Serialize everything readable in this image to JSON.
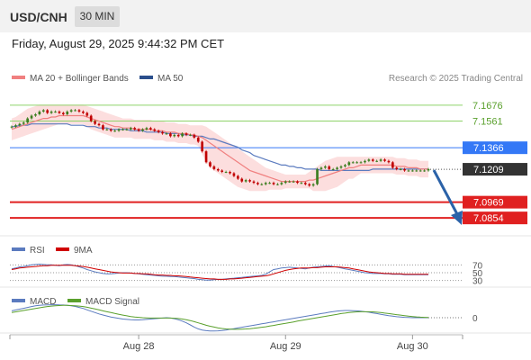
{
  "header": {
    "symbol": "USD/CNH",
    "interval": "30 MIN",
    "datetime": "Friday, August 29, 2025 9:44:32 PM CET"
  },
  "legend": {
    "ma20_label": "MA 20 + Bollinger Bands",
    "ma50_label": "MA 50",
    "credit": "Research © 2025 Trading Central"
  },
  "rsi_panel": {
    "rsi_label": "RSI",
    "ma_label": "9MA"
  },
  "macd_panel": {
    "macd_label": "MACD",
    "signal_label": "MACD Signal"
  },
  "colors": {
    "up_candle": "#3a7d1e",
    "down_candle": "#c00000",
    "ma20": "#f08080",
    "ma50": "#5b7bbf",
    "bollinger_fill": "#fbd3d3",
    "support": "#e02020",
    "resistance": "#8fd36a",
    "pivot": "#3478f6",
    "last_price": "#333333",
    "arrow": "#2b62a8"
  },
  "chart_data": [
    {
      "type": "candlestick",
      "title": "USD/CNH",
      "ylim": [
        7.075,
        7.182
      ],
      "x_tick_labels": [
        "Aug 28",
        "Aug 29",
        "Aug 30"
      ],
      "levels": [
        {
          "kind": "resistance",
          "value": 7.1676,
          "label": "7.1676"
        },
        {
          "kind": "resistance",
          "value": 7.1561,
          "label": "7.1561"
        },
        {
          "kind": "pivot",
          "value": 7.1366,
          "label": "7.1366"
        },
        {
          "kind": "last",
          "value": 7.1209,
          "label": "7.1209"
        },
        {
          "kind": "support",
          "value": 7.0969,
          "label": "7.0969"
        },
        {
          "kind": "support",
          "value": 7.0854,
          "label": "7.0854"
        }
      ],
      "close": [
        7.152,
        7.153,
        7.154,
        7.155,
        7.158,
        7.16,
        7.161,
        7.163,
        7.164,
        7.162,
        7.163,
        7.163,
        7.162,
        7.161,
        7.163,
        7.164,
        7.164,
        7.163,
        7.162,
        7.16,
        7.156,
        7.154,
        7.153,
        7.15,
        7.15,
        7.149,
        7.149,
        7.15,
        7.15,
        7.15,
        7.151,
        7.15,
        7.149,
        7.15,
        7.151,
        7.15,
        7.149,
        7.148,
        7.147,
        7.147,
        7.145,
        7.146,
        7.145,
        7.147,
        7.146,
        7.146,
        7.144,
        7.141,
        7.134,
        7.126,
        7.123,
        7.121,
        7.12,
        7.119,
        7.119,
        7.118,
        7.116,
        7.114,
        7.112,
        7.113,
        7.112,
        7.111,
        7.11,
        7.11,
        7.111,
        7.111,
        7.11,
        7.11,
        7.111,
        7.112,
        7.112,
        7.112,
        7.111,
        7.111,
        7.11,
        7.109,
        7.11,
        7.121,
        7.122,
        7.123,
        7.121,
        7.121,
        7.122,
        7.123,
        7.124,
        7.126,
        7.126,
        7.126,
        7.126,
        7.127,
        7.128,
        7.127,
        7.127,
        7.128,
        7.127,
        7.126,
        7.122,
        7.121,
        7.121,
        7.12,
        7.12,
        7.12,
        7.12,
        7.12,
        7.12,
        7.121
      ],
      "ma20": [
        7.15,
        7.151,
        7.152,
        7.153,
        7.154,
        7.155,
        7.156,
        7.157,
        7.158,
        7.158,
        7.159,
        7.159,
        7.16,
        7.16,
        7.16,
        7.16,
        7.16,
        7.16,
        7.16,
        7.159,
        7.158,
        7.157,
        7.156,
        7.155,
        7.154,
        7.153,
        7.152,
        7.152,
        7.151,
        7.151,
        7.151,
        7.15,
        7.15,
        7.15,
        7.15,
        7.15,
        7.149,
        7.149,
        7.149,
        7.148,
        7.148,
        7.148,
        7.147,
        7.147,
        7.147,
        7.146,
        7.146,
        7.145,
        7.144,
        7.142,
        7.14,
        7.138,
        7.136,
        7.134,
        7.132,
        7.13,
        7.128,
        7.126,
        7.124,
        7.122,
        7.12,
        7.119,
        7.118,
        7.117,
        7.116,
        7.115,
        7.114,
        7.113,
        7.112,
        7.112,
        7.112,
        7.112,
        7.112,
        7.112,
        7.112,
        7.113,
        7.113,
        7.114,
        7.115,
        7.116,
        7.117,
        7.118,
        7.119,
        7.12,
        7.121,
        7.122,
        7.122,
        7.123,
        7.124,
        7.124,
        7.124,
        7.124,
        7.124,
        7.124,
        7.124,
        7.124,
        7.124,
        7.123,
        7.123,
        7.123,
        7.122,
        7.122,
        7.122,
        7.121,
        7.121,
        7.121
      ],
      "ma50": [
        7.152,
        7.152,
        7.153,
        7.153,
        7.153,
        7.154,
        7.154,
        7.154,
        7.154,
        7.154,
        7.154,
        7.154,
        7.154,
        7.154,
        7.154,
        7.153,
        7.153,
        7.153,
        7.153,
        7.152,
        7.152,
        7.152,
        7.151,
        7.151,
        7.151,
        7.15,
        7.15,
        7.15,
        7.15,
        7.15,
        7.149,
        7.149,
        7.149,
        7.149,
        7.148,
        7.148,
        7.148,
        7.148,
        7.148,
        7.147,
        7.147,
        7.147,
        7.147,
        7.146,
        7.146,
        7.146,
        7.145,
        7.145,
        7.145,
        7.144,
        7.143,
        7.143,
        7.142,
        7.141,
        7.14,
        7.139,
        7.138,
        7.137,
        7.135,
        7.134,
        7.133,
        7.131,
        7.13,
        7.129,
        7.128,
        7.127,
        7.126,
        7.125,
        7.124,
        7.124,
        7.123,
        7.123,
        7.122,
        7.122,
        7.121,
        7.121,
        7.121,
        7.121,
        7.12,
        7.12,
        7.12,
        7.12,
        7.12,
        7.12,
        7.12,
        7.12,
        7.12,
        7.12,
        7.12,
        7.12,
        7.12,
        7.121,
        7.121,
        7.121,
        7.121,
        7.121,
        7.121,
        7.121,
        7.121,
        7.121,
        7.121,
        7.121,
        7.121,
        7.121,
        7.121,
        7.121
      ],
      "bollinger_upper": [
        7.158,
        7.159,
        7.161,
        7.163,
        7.165,
        7.166,
        7.167,
        7.168,
        7.168,
        7.168,
        7.168,
        7.168,
        7.168,
        7.168,
        7.168,
        7.168,
        7.168,
        7.168,
        7.168,
        7.167,
        7.166,
        7.165,
        7.164,
        7.163,
        7.162,
        7.161,
        7.16,
        7.159,
        7.158,
        7.158,
        7.158,
        7.157,
        7.157,
        7.157,
        7.157,
        7.157,
        7.156,
        7.156,
        7.156,
        7.155,
        7.155,
        7.155,
        7.154,
        7.154,
        7.154,
        7.153,
        7.153,
        7.153,
        7.153,
        7.152,
        7.15,
        7.148,
        7.146,
        7.144,
        7.142,
        7.14,
        7.138,
        7.136,
        7.134,
        7.132,
        7.13,
        7.128,
        7.126,
        7.124,
        7.122,
        7.121,
        7.12,
        7.119,
        7.118,
        7.117,
        7.117,
        7.117,
        7.117,
        7.117,
        7.117,
        7.119,
        7.121,
        7.123,
        7.125,
        7.127,
        7.128,
        7.129,
        7.13,
        7.13,
        7.13,
        7.13,
        7.13,
        7.13,
        7.13,
        7.13,
        7.13,
        7.13,
        7.13,
        7.13,
        7.13,
        7.13,
        7.13,
        7.129,
        7.129,
        7.129,
        7.128,
        7.128,
        7.128,
        7.127,
        7.127,
        7.127
      ],
      "bollinger_lower": [
        7.142,
        7.143,
        7.144,
        7.145,
        7.146,
        7.147,
        7.148,
        7.149,
        7.15,
        7.151,
        7.152,
        7.153,
        7.154,
        7.154,
        7.154,
        7.154,
        7.154,
        7.154,
        7.154,
        7.152,
        7.15,
        7.149,
        7.148,
        7.147,
        7.146,
        7.145,
        7.144,
        7.144,
        7.144,
        7.144,
        7.144,
        7.143,
        7.143,
        7.143,
        7.143,
        7.143,
        7.142,
        7.142,
        7.142,
        7.141,
        7.141,
        7.141,
        7.14,
        7.14,
        7.14,
        7.139,
        7.139,
        7.138,
        7.132,
        7.126,
        7.122,
        7.12,
        7.118,
        7.116,
        7.114,
        7.112,
        7.11,
        7.108,
        7.107,
        7.106,
        7.105,
        7.105,
        7.105,
        7.105,
        7.105,
        7.106,
        7.106,
        7.106,
        7.106,
        7.107,
        7.107,
        7.107,
        7.107,
        7.107,
        7.107,
        7.107,
        7.105,
        7.105,
        7.105,
        7.105,
        7.106,
        7.107,
        7.108,
        7.11,
        7.112,
        7.114,
        7.114,
        7.116,
        7.118,
        7.118,
        7.118,
        7.118,
        7.118,
        7.118,
        7.118,
        7.118,
        7.118,
        7.117,
        7.117,
        7.117,
        7.116,
        7.116,
        7.116,
        7.115,
        7.115,
        7.115
      ],
      "rsi": {
        "levels": [
          70,
          50,
          30
        ],
        "ylim": [
          20,
          80
        ],
        "values": [
          60,
          62,
          65,
          66,
          68,
          70,
          71,
          72,
          71,
          70,
          70,
          69,
          68,
          70,
          71,
          70,
          68,
          65,
          62,
          58,
          55,
          52,
          50,
          48,
          47,
          47,
          48,
          49,
          50,
          50,
          49,
          48,
          47,
          46,
          45,
          44,
          43,
          42,
          41,
          41,
          40,
          40,
          39,
          38,
          37,
          36,
          35,
          33,
          32,
          31,
          31,
          32,
          33,
          33,
          34,
          35,
          36,
          37,
          38,
          39,
          40,
          41,
          42,
          43,
          46,
          52,
          58,
          60,
          62,
          63,
          64,
          63,
          62,
          61,
          60,
          62,
          64,
          65,
          66,
          67,
          68,
          66,
          64,
          62,
          60,
          58,
          56,
          54,
          52,
          50,
          49,
          48,
          48,
          48,
          47,
          47,
          46,
          46,
          46,
          45,
          45,
          45,
          45,
          45,
          45,
          45
        ],
        "ma": [
          58,
          60,
          62,
          63,
          64,
          65,
          66,
          67,
          68,
          68,
          69,
          69,
          69,
          69,
          69,
          69,
          68,
          67,
          66,
          64,
          62,
          60,
          58,
          56,
          54,
          52,
          51,
          50,
          49,
          49,
          49,
          48,
          48,
          47,
          47,
          46,
          45,
          44,
          44,
          43,
          43,
          42,
          42,
          41,
          40,
          39,
          38,
          37,
          36,
          35,
          34,
          34,
          33,
          33,
          33,
          34,
          34,
          35,
          36,
          37,
          38,
          39,
          40,
          41,
          42,
          44,
          47,
          50,
          53,
          56,
          58,
          60,
          61,
          62,
          62,
          62,
          63,
          63,
          64,
          65,
          65,
          65,
          65,
          64,
          63,
          62,
          60,
          58,
          56,
          54,
          52,
          51,
          50,
          49,
          48,
          48,
          47,
          47,
          47,
          46,
          46,
          46,
          46,
          46,
          46,
          46
        ]
      },
      "macd": {
        "zero_label": "0",
        "macd": [
          0.004,
          0.0045,
          0.005,
          0.0055,
          0.006,
          0.0065,
          0.007,
          0.0072,
          0.0074,
          0.0075,
          0.0076,
          0.0076,
          0.0075,
          0.0074,
          0.0072,
          0.007,
          0.0066,
          0.006,
          0.0054,
          0.0046,
          0.0038,
          0.003,
          0.0022,
          0.0016,
          0.001,
          0.0004,
          0.0,
          -0.0004,
          -0.0008,
          -0.001,
          -0.0012,
          -0.0013,
          -0.0013,
          -0.0012,
          -0.001,
          -0.0008,
          -0.0006,
          -0.0004,
          -0.0002,
          0.0,
          -0.0002,
          -0.0006,
          -0.0012,
          -0.002,
          -0.003,
          -0.0042,
          -0.0055,
          -0.0065,
          -0.0072,
          -0.0076,
          -0.0078,
          -0.0078,
          -0.0077,
          -0.0075,
          -0.0072,
          -0.0068,
          -0.0064,
          -0.006,
          -0.0056,
          -0.0052,
          -0.0048,
          -0.0044,
          -0.004,
          -0.0036,
          -0.0032,
          -0.0028,
          -0.0024,
          -0.002,
          -0.0016,
          -0.0012,
          -0.0008,
          -0.0004,
          0.0,
          0.0004,
          0.0008,
          0.0012,
          0.0016,
          0.002,
          0.0024,
          0.0028,
          0.0032,
          0.0036,
          0.0039,
          0.0041,
          0.0042,
          0.0042,
          0.0041,
          0.004,
          0.0038,
          0.0035,
          0.0032,
          0.0028,
          0.0024,
          0.002,
          0.0016,
          0.0012,
          0.0009,
          0.0006,
          0.0004,
          0.0002,
          0.0001,
          0.0,
          0.0,
          0.0,
          0.0,
          0.0
        ],
        "signal": [
          0.003,
          0.0034,
          0.0038,
          0.0042,
          0.0046,
          0.005,
          0.0054,
          0.0058,
          0.0062,
          0.0065,
          0.0068,
          0.007,
          0.0071,
          0.0072,
          0.0072,
          0.0071,
          0.007,
          0.0068,
          0.0065,
          0.0061,
          0.0056,
          0.0051,
          0.0046,
          0.004,
          0.0035,
          0.003,
          0.0025,
          0.002,
          0.0015,
          0.0011,
          0.0007,
          0.0004,
          0.0002,
          0.0,
          -0.0001,
          -0.0002,
          -0.0002,
          -0.0002,
          -0.0002,
          -0.0002,
          -0.0002,
          -0.0003,
          -0.0005,
          -0.0008,
          -0.0012,
          -0.0017,
          -0.0023,
          -0.003,
          -0.0037,
          -0.0044,
          -0.005,
          -0.0055,
          -0.006,
          -0.0063,
          -0.0066,
          -0.0067,
          -0.0068,
          -0.0068,
          -0.0067,
          -0.0066,
          -0.0064,
          -0.0062,
          -0.0059,
          -0.0056,
          -0.0053,
          -0.0049,
          -0.0045,
          -0.0041,
          -0.0037,
          -0.0033,
          -0.0029,
          -0.0025,
          -0.002,
          -0.0016,
          -0.0012,
          -0.0008,
          -0.0004,
          0.0,
          0.0004,
          0.0008,
          0.0012,
          0.0016,
          0.002,
          0.0024,
          0.0027,
          0.003,
          0.0032,
          0.0034,
          0.0035,
          0.0035,
          0.0035,
          0.0034,
          0.0032,
          0.003,
          0.0027,
          0.0024,
          0.0021,
          0.0018,
          0.0015,
          0.0012,
          0.0009,
          0.0007,
          0.0005,
          0.0003,
          0.0002,
          0.0001
        ]
      }
    }
  ]
}
